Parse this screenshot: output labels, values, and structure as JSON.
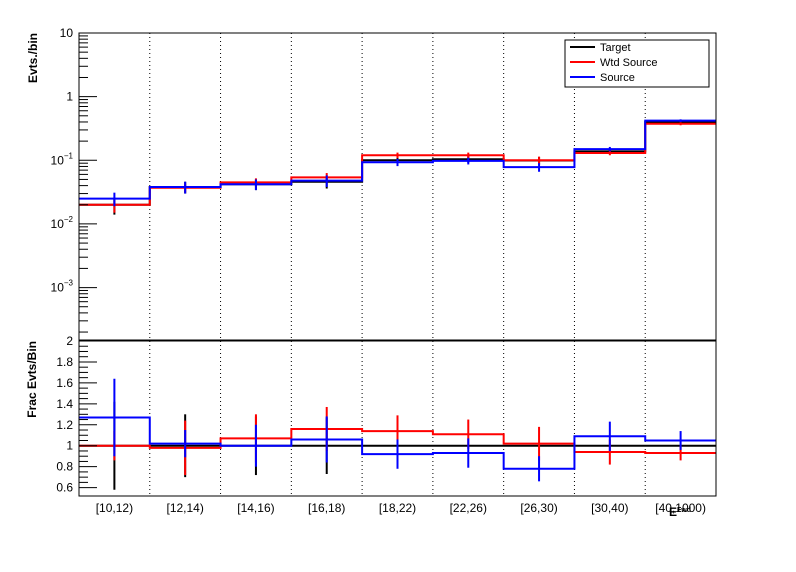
{
  "chart_data": [
    {
      "type": "step-histogram",
      "ylabel": "Evts./bin",
      "yscale": "log",
      "ylim": [
        0.00015,
        10
      ],
      "y_ticks": [
        {
          "value": 10,
          "label": "10"
        },
        {
          "value": 1,
          "label": "1"
        },
        {
          "value": 0.1,
          "label": "10",
          "exp": "−1"
        },
        {
          "value": 0.01,
          "label": "10",
          "exp": "−2"
        },
        {
          "value": 0.001,
          "label": "10",
          "exp": "−3"
        }
      ],
      "categories": [
        "[10,12)",
        "[12,14)",
        "[14,16)",
        "[16,18)",
        "[18,22)",
        "[22,26)",
        "[26,30)",
        "[30,40)",
        "[40,1000)"
      ],
      "legend_position": "top-right",
      "series": [
        {
          "name": "Target",
          "color": "#000000",
          "values": [
            0.02,
            0.038,
            0.042,
            0.046,
            0.1,
            0.104,
            0.099,
            0.138,
            0.4
          ],
          "errors": [
            0.006,
            0.008,
            0.008,
            0.01,
            0.012,
            0.012,
            0.014,
            0.012,
            0.02
          ]
        },
        {
          "name": "Wtd Source",
          "color": "#ff0000",
          "values": [
            0.02,
            0.037,
            0.045,
            0.054,
            0.12,
            0.12,
            0.1,
            0.13,
            0.375
          ],
          "errors": [
            0.005,
            0.006,
            0.007,
            0.009,
            0.012,
            0.012,
            0.014,
            0.01,
            0.02
          ]
        },
        {
          "name": "Source",
          "color": "#0000ff",
          "values": [
            0.025,
            0.038,
            0.042,
            0.048,
            0.093,
            0.098,
            0.078,
            0.15,
            0.42
          ],
          "errors": [
            0.006,
            0.008,
            0.008,
            0.01,
            0.012,
            0.012,
            0.012,
            0.012,
            0.02
          ]
        }
      ]
    },
    {
      "type": "step-histogram",
      "ylabel": "Frac Evts/Bin",
      "ylim": [
        0.52,
        2.0
      ],
      "y_ticks": [
        0.6,
        0.8,
        1.0,
        1.2,
        1.4,
        1.6,
        1.8,
        2.0
      ],
      "y_tick_labels": [
        "0.6",
        "0.8",
        "1",
        "1.2",
        "1.4",
        "1.6",
        "1.8",
        "2"
      ],
      "categories": [
        "[10,12)",
        "[12,14)",
        "[14,16)",
        "[16,18)",
        "[18,22)",
        "[22,26)",
        "[26,30)",
        "[30,40)",
        "[40,1000)"
      ],
      "xlabel": "E_{rec}",
      "xlabel_main": "E",
      "xlabel_sub": "Fwd",
      "series": [
        {
          "name": "Target",
          "color": "#000000",
          "values": [
            1,
            1,
            1,
            1,
            1,
            1,
            1,
            1,
            1
          ],
          "errors": [
            0.42,
            0.3,
            0.28,
            0.27,
            0.0,
            0.0,
            0.0,
            0.0,
            0.0
          ]
        },
        {
          "name": "Wtd Source",
          "color": "#ff0000",
          "values": [
            1.0,
            0.98,
            1.07,
            1.16,
            1.14,
            1.11,
            1.02,
            0.94,
            0.93
          ],
          "errors": [
            0.14,
            0.26,
            0.23,
            0.21,
            0.15,
            0.14,
            0.16,
            0.12,
            0.07
          ]
        },
        {
          "name": "Source",
          "color": "#0000ff",
          "values": [
            1.27,
            1.02,
            1.0,
            1.06,
            0.92,
            0.93,
            0.78,
            1.09,
            1.05
          ],
          "errors": [
            0.37,
            0.13,
            0.2,
            0.22,
            0.14,
            0.14,
            0.12,
            0.14,
            0.09
          ]
        }
      ]
    }
  ]
}
